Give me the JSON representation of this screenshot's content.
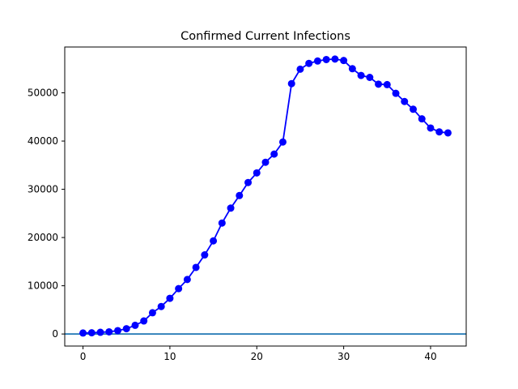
{
  "chart_data": {
    "type": "line",
    "title": "Confirmed Current Infections",
    "xlabel": "",
    "ylabel": "",
    "xlim": [
      -2.1,
      44.1
    ],
    "ylim": [
      -2500,
      59500
    ],
    "xticks": [
      0,
      10,
      20,
      30,
      40
    ],
    "yticks": [
      0,
      10000,
      20000,
      30000,
      40000,
      50000
    ],
    "grid": false,
    "series": [
      {
        "color": "#0000ff",
        "marker": "circle",
        "x": [
          0,
          1,
          2,
          3,
          4,
          5,
          6,
          7,
          8,
          9,
          10,
          11,
          12,
          13,
          14,
          15,
          16,
          17,
          18,
          19,
          20,
          21,
          22,
          23,
          24,
          25,
          26,
          27,
          28,
          29,
          30,
          31,
          32,
          33,
          34,
          35,
          36,
          37,
          38,
          39,
          40,
          41,
          42
        ],
        "values": [
          200,
          250,
          350,
          450,
          700,
          1100,
          1800,
          2700,
          4400,
          5700,
          7400,
          9400,
          11300,
          13800,
          16400,
          19300,
          23000,
          26100,
          28700,
          31400,
          33400,
          35600,
          37300,
          39800,
          51900,
          54900,
          56100,
          56600,
          56900,
          57000,
          56700,
          55000,
          53600,
          53200,
          51800,
          51700,
          49900,
          48200,
          46600,
          44600,
          42700,
          41900,
          41700
        ]
      }
    ],
    "reference_lines": [
      {
        "orientation": "horizontal",
        "y": 0,
        "color": "#1f77b4"
      }
    ]
  }
}
